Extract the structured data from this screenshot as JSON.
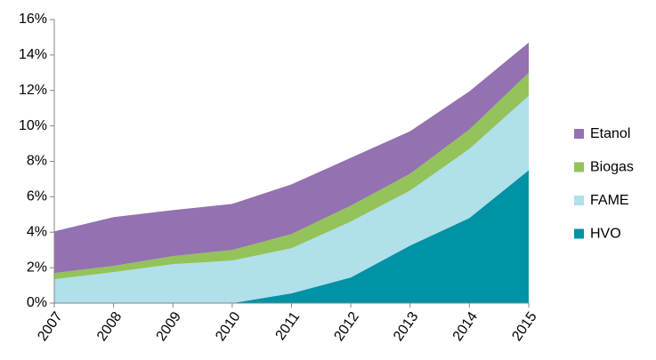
{
  "chart_data": {
    "type": "stacked_area",
    "categories": [
      "2007",
      "2008",
      "2009",
      "2010",
      "2011",
      "2012",
      "2013",
      "2014",
      "2015"
    ],
    "series": [
      {
        "name": "HVO",
        "color": "#0092a5",
        "values": [
          0,
          0,
          0,
          0,
          0.55,
          1.45,
          3.25,
          4.8,
          7.5
        ]
      },
      {
        "name": "FAME",
        "color": "#b0e0ea",
        "values": [
          1.35,
          1.75,
          2.2,
          2.4,
          2.55,
          3.15,
          3.1,
          3.9,
          4.2
        ]
      },
      {
        "name": "Biogas",
        "color": "#93c35a",
        "values": [
          0.35,
          0.35,
          0.45,
          0.6,
          0.8,
          0.9,
          0.95,
          1.1,
          1.3
        ]
      },
      {
        "name": "Etanol",
        "color": "#9471b0",
        "values": [
          2.35,
          2.75,
          2.6,
          2.6,
          2.8,
          2.7,
          2.4,
          2.15,
          1.7
        ]
      }
    ],
    "ylim": [
      0,
      16
    ],
    "yticks": [
      {
        "value": 0,
        "label": "0%"
      },
      {
        "value": 2,
        "label": "2%"
      },
      {
        "value": 4,
        "label": "4%"
      },
      {
        "value": 6,
        "label": "6%"
      },
      {
        "value": 8,
        "label": "8%"
      },
      {
        "value": 10,
        "label": "10%"
      },
      {
        "value": 12,
        "label": "12%"
      },
      {
        "value": 14,
        "label": "14%"
      },
      {
        "value": 16,
        "label": "16%"
      }
    ],
    "grid": false,
    "legend": "right"
  }
}
